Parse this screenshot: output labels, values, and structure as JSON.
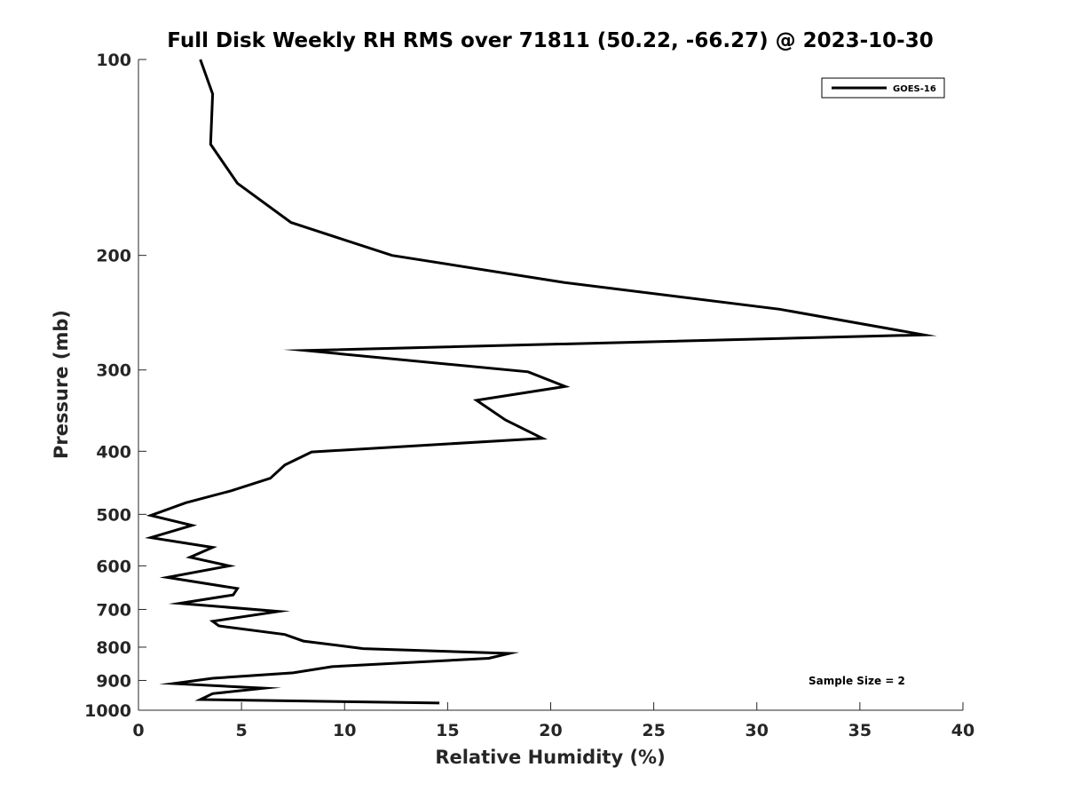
{
  "chart_data": {
    "type": "line",
    "title": "Full Disk Weekly RH RMS over 71811 (50.22, -66.27) @ 2023-10-30",
    "xlabel": "Relative Humidity (%)",
    "ylabel": "Pressure (mb)",
    "xlim": [
      0,
      40
    ],
    "ylim": [
      1000,
      100
    ],
    "yscale": "log",
    "xticks": [
      "0",
      "5",
      "10",
      "15",
      "20",
      "25",
      "30",
      "35",
      "40"
    ],
    "yticks": [
      "100",
      "200",
      "300",
      "400",
      "500",
      "600",
      "700",
      "800",
      "900",
      "1000"
    ],
    "grid": false,
    "legend_position": "top-right",
    "annotation": "Sample Size = 2",
    "series": [
      {
        "name": "GOES-16",
        "color": "#000000",
        "x": [
          3.0,
          3.6,
          3.5,
          4.8,
          7.4,
          12.3,
          20.6,
          31.1,
          38.1,
          8.1,
          18.9,
          20.7,
          16.4,
          17.8,
          19.6,
          8.4,
          7.1,
          6.4,
          4.5,
          2.3,
          0.6,
          2.6,
          0.6,
          3.6,
          2.5,
          4.4,
          1.4,
          4.8,
          4.6,
          2.0,
          6.8,
          3.6,
          3.9,
          7.1,
          8.0,
          10.9,
          18.0,
          17.0,
          9.4,
          7.5,
          3.6,
          1.7,
          6.1,
          3.6,
          3.0,
          14.6
        ],
        "y": [
          100,
          113,
          135,
          155,
          178,
          200,
          220,
          242,
          265,
          280,
          302,
          318,
          334,
          358,
          382,
          401,
          420,
          440,
          460,
          480,
          502,
          520,
          543,
          562,
          582,
          600,
          625,
          650,
          665,
          685,
          705,
          730,
          742,
          765,
          783,
          804,
          818,
          832,
          857,
          876,
          893,
          910,
          925,
          943,
          963,
          975
        ]
      }
    ]
  }
}
